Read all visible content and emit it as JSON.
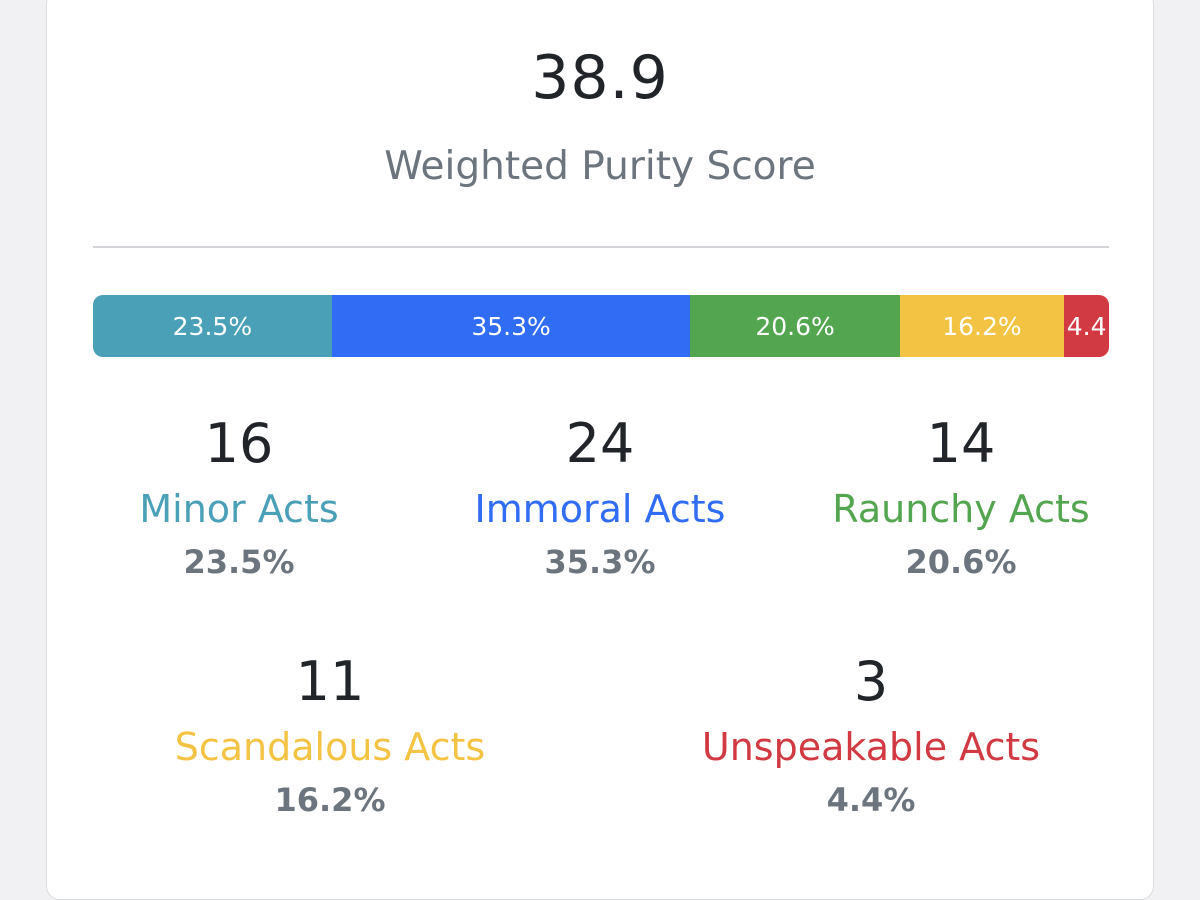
{
  "score": "38.9",
  "score_label": "Weighted Purity Score",
  "colors": {
    "minor": "#4aa0b7",
    "immoral": "#316cf4",
    "raunchy": "#53a64f",
    "scandalous": "#f3c343",
    "unspeakable": "#d23a43"
  },
  "bar": [
    {
      "label": "23.5%",
      "fraction": 0.235
    },
    {
      "label": "35.3%",
      "fraction": 0.353
    },
    {
      "label": "20.6%",
      "fraction": 0.206
    },
    {
      "label": "16.2%",
      "fraction": 0.162
    },
    {
      "label": "4.4",
      "fraction": 0.044
    }
  ],
  "stats": [
    {
      "count": "16",
      "name": "Minor Acts",
      "pct": "23.5%"
    },
    {
      "count": "24",
      "name": "Immoral Acts",
      "pct": "35.3%"
    },
    {
      "count": "14",
      "name": "Raunchy Acts",
      "pct": "20.6%"
    },
    {
      "count": "11",
      "name": "Scandalous Acts",
      "pct": "16.2%"
    },
    {
      "count": "3",
      "name": "Unspeakable Acts",
      "pct": "4.4%"
    }
  ]
}
